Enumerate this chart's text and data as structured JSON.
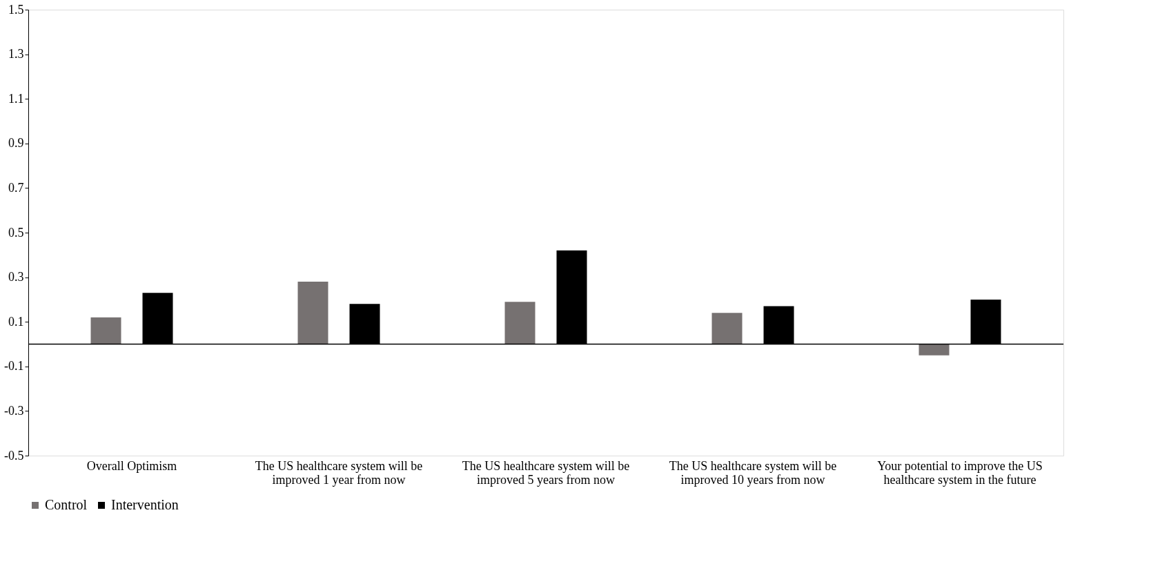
{
  "chart_data": {
    "type": "bar",
    "categories": [
      "Overall Optimism",
      "The US healthcare system will be improved 1 year from now",
      "The US healthcare system will be improved 5 years from now",
      "The US healthcare system will be improved 10 years from now",
      "Your potential to improve the US healthcare system in the future"
    ],
    "series": [
      {
        "name": "Control",
        "color": "#767171",
        "values": [
          0.12,
          0.28,
          0.19,
          0.14,
          -0.05
        ]
      },
      {
        "name": "Intervention",
        "color": "#000000",
        "values": [
          0.23,
          0.18,
          0.42,
          0.17,
          0.2
        ]
      }
    ],
    "ylim": [
      -0.5,
      1.5
    ],
    "yticks": [
      -0.5,
      -0.3,
      -0.1,
      0.1,
      0.3,
      0.5,
      0.7,
      0.9,
      1.1,
      1.3,
      1.5
    ],
    "grid": false,
    "legend": "bottom"
  }
}
